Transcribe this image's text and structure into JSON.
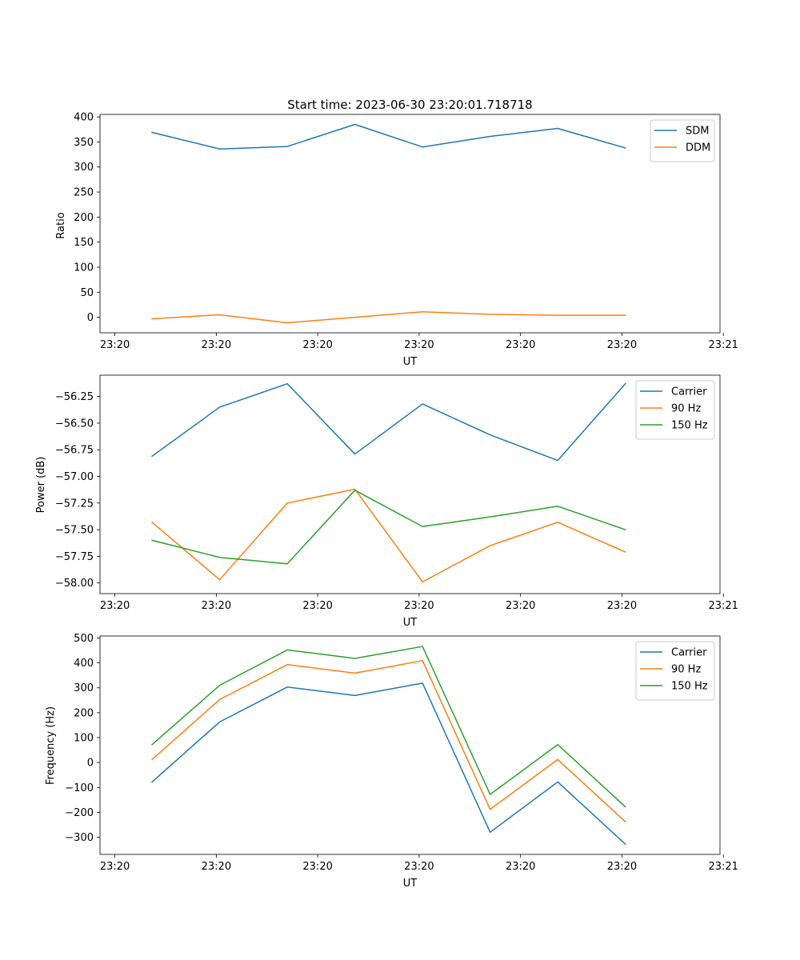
{
  "figure": {
    "title": "Start time: 2023-06-30 23:20:01.718718"
  },
  "chart_data": [
    {
      "type": "line",
      "title": "Start time: 2023-06-30 23:20:01.718718",
      "xlabel": "UT",
      "ylabel": "Ratio",
      "x": [
        1,
        2,
        3,
        4,
        5,
        6,
        7,
        8
      ],
      "xlim": [
        0.23,
        9.4
      ],
      "xticks": [
        0.45,
        1.95,
        3.45,
        4.95,
        6.45,
        7.95,
        9.45
      ],
      "xtick_labels": [
        "23:20",
        "23:20",
        "23:20",
        "23:20",
        "23:20",
        "23:20",
        "23:21"
      ],
      "ylim": [
        -31,
        405
      ],
      "yticks": [
        0,
        50,
        100,
        150,
        200,
        250,
        300,
        350,
        400
      ],
      "ytick_labels": [
        "0",
        "50",
        "100",
        "150",
        "200",
        "250",
        "300",
        "350",
        "400"
      ],
      "grid": false,
      "legend": "upper right",
      "series": [
        {
          "name": "SDM",
          "color": "#1f77b4",
          "values": [
            369,
            336,
            341,
            385,
            340,
            361,
            377,
            338
          ]
        },
        {
          "name": "DDM",
          "color": "#ff7f0e",
          "values": [
            -3,
            5,
            -11,
            0,
            11,
            6,
            4,
            4
          ]
        }
      ]
    },
    {
      "type": "line",
      "xlabel": "UT",
      "ylabel": "Power (dB)",
      "x": [
        1,
        2,
        3,
        4,
        5,
        6,
        7,
        8
      ],
      "xlim": [
        0.23,
        9.4
      ],
      "xticks": [
        0.45,
        1.95,
        3.45,
        4.95,
        6.45,
        7.95,
        9.45
      ],
      "xtick_labels": [
        "23:20",
        "23:20",
        "23:20",
        "23:20",
        "23:20",
        "23:20",
        "23:21"
      ],
      "ylim": [
        -58.1,
        -56.05
      ],
      "yticks": [
        -58.0,
        -57.75,
        -57.5,
        -57.25,
        -57.0,
        -56.75,
        -56.5,
        -56.25
      ],
      "ytick_labels": [
        "−58.00",
        "−57.75",
        "−57.50",
        "−57.25",
        "−57.00",
        "−56.75",
        "−56.50",
        "−56.25"
      ],
      "grid": false,
      "legend": "upper right",
      "series": [
        {
          "name": "Carrier",
          "color": "#1f77b4",
          "values": [
            -56.81,
            -56.35,
            -56.13,
            -56.79,
            -56.32,
            -56.61,
            -56.85,
            -56.13
          ]
        },
        {
          "name": "90 Hz",
          "color": "#ff7f0e",
          "values": [
            -57.43,
            -57.97,
            -57.25,
            -57.12,
            -57.99,
            -57.65,
            -57.43,
            -57.71
          ]
        },
        {
          "name": "150 Hz",
          "color": "#2ca02c",
          "values": [
            -57.6,
            -57.76,
            -57.82,
            -57.13,
            -57.47,
            -57.38,
            -57.28,
            -57.5
          ]
        }
      ]
    },
    {
      "type": "line",
      "xlabel": "UT",
      "ylabel": "Frequency (Hz)",
      "x": [
        1,
        2,
        3,
        4,
        5,
        6,
        7,
        8
      ],
      "xlim": [
        0.23,
        9.4
      ],
      "xticks": [
        0.45,
        1.95,
        3.45,
        4.95,
        6.45,
        7.95,
        9.45
      ],
      "xtick_labels": [
        "23:20",
        "23:20",
        "23:20",
        "23:20",
        "23:20",
        "23:20",
        "23:21"
      ],
      "ylim": [
        -369,
        508
      ],
      "yticks": [
        -300,
        -200,
        -100,
        0,
        100,
        200,
        300,
        400,
        500
      ],
      "ytick_labels": [
        "−300",
        "−200",
        "−100",
        "0",
        "100",
        "200",
        "300",
        "400",
        "500"
      ],
      "grid": false,
      "legend": "upper right",
      "series": [
        {
          "name": "Carrier",
          "color": "#1f77b4",
          "values": [
            -78,
            163,
            303,
            269,
            319,
            -280,
            -78,
            -328
          ]
        },
        {
          "name": "90 Hz",
          "color": "#ff7f0e",
          "values": [
            12,
            253,
            393,
            359,
            409,
            -188,
            12,
            -238
          ]
        },
        {
          "name": "150 Hz",
          "color": "#2ca02c",
          "values": [
            72,
            310,
            452,
            418,
            466,
            -128,
            72,
            -178
          ]
        }
      ]
    }
  ]
}
